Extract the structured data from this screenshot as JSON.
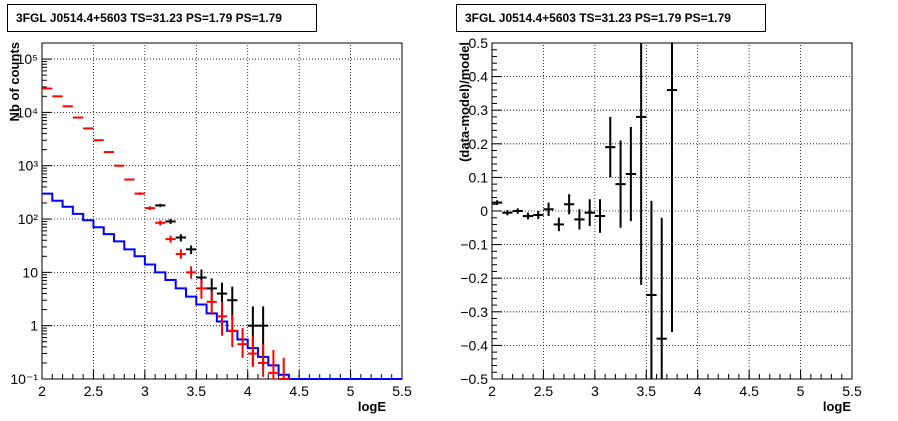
{
  "chart_data": [
    {
      "type": "line",
      "title": "3FGL J0514.4+5603 TS=31.23 PS=1.79 PS=1.79",
      "xlabel": "logE",
      "ylabel": "Nb of counts",
      "xlim": [
        2,
        5.5
      ],
      "ylim": [
        0.1,
        200000
      ],
      "yscale": "log",
      "grid": true,
      "xticks": [
        "2",
        "2.5",
        "3",
        "3.5",
        "4",
        "4.5",
        "5",
        "5.5"
      ],
      "yticks": [
        "10⁻¹",
        "1",
        "10",
        "10²",
        "10³",
        "10⁴",
        "10⁵"
      ],
      "series": [
        {
          "color": "#0000ff",
          "style": "histogram",
          "x": [
            2.0,
            2.1,
            2.2,
            2.3,
            2.4,
            2.5,
            2.6,
            2.7,
            2.8,
            2.9,
            3.0,
            3.1,
            3.2,
            3.3,
            3.4,
            3.5,
            3.6,
            3.7,
            3.8,
            3.9,
            4.0,
            4.1,
            4.2,
            4.3,
            4.4,
            4.5,
            4.6,
            4.7,
            4.8,
            4.9,
            5.0,
            5.1,
            5.2,
            5.3,
            5.4
          ],
          "values": [
            300,
            220,
            170,
            125,
            95,
            70,
            52,
            38,
            27,
            20,
            14,
            10,
            7.2,
            5.0,
            3.5,
            2.5,
            1.7,
            1.2,
            0.8,
            0.55,
            0.38,
            0.26,
            0.18,
            0.12,
            0.1,
            0.1,
            0.1,
            0.1,
            0.1,
            0.1,
            0.1,
            0.1,
            0.1,
            0.1,
            0.1
          ]
        },
        {
          "color": "#ff0000",
          "style": "points",
          "x": [
            2.05,
            2.15,
            2.25,
            2.35,
            2.45,
            2.55,
            2.65,
            2.75,
            2.85,
            2.95,
            3.05,
            3.15,
            3.25,
            3.35,
            3.45,
            3.55,
            3.65,
            3.75,
            3.85,
            3.95,
            4.05,
            4.15,
            4.25,
            4.35
          ],
          "values": [
            28000,
            20000,
            13000,
            8000,
            5000,
            3000,
            1800,
            1000,
            550,
            300,
            160,
            85,
            42,
            22,
            10,
            5,
            2.8,
            1.5,
            0.8,
            0.45,
            0.3,
            0.2,
            0.13,
            0.1
          ],
          "yerr_low": [
            27832,
            19859,
            12886,
            7911,
            4929,
            2945,
            1758,
            968,
            527,
            283,
            148,
            76,
            36,
            18,
            7.6,
            3.2,
            1.6,
            0.65,
            0.4,
            0.25,
            0.17,
            0.11,
            0.07,
            0.05
          ],
          "yerr_high": [
            28168,
            20141,
            13114,
            8089,
            5071,
            3055,
            1842,
            1032,
            573,
            317,
            173,
            94,
            49,
            27,
            13,
            7.2,
            4.4,
            2.8,
            1.6,
            0.9,
            0.65,
            0.45,
            0.35,
            0.25
          ]
        },
        {
          "color": "#000000",
          "style": "points",
          "x": [
            3.15,
            3.25,
            3.35,
            3.45,
            3.55,
            3.65,
            3.75,
            3.85,
            4.05,
            4.15
          ],
          "values": [
            180,
            90,
            45,
            27,
            8,
            5,
            4,
            3,
            1,
            1
          ],
          "yerr_low": [
            167,
            81,
            38,
            22,
            5.2,
            2.8,
            2,
            1.3,
            0.17,
            0.17
          ],
          "yerr_high": [
            193,
            100,
            52,
            32,
            11.3,
            7.7,
            6.4,
            5.4,
            2.3,
            2.3
          ]
        }
      ]
    },
    {
      "type": "scatter",
      "title": "3FGL J0514.4+5603 TS=31.23 PS=1.79 PS=1.79",
      "xlabel": "logE",
      "ylabel": "(data-model)/model",
      "xlim": [
        2,
        5.5
      ],
      "ylim": [
        -0.5,
        0.5
      ],
      "grid": true,
      "xticks": [
        "2",
        "2.5",
        "3",
        "3.5",
        "4",
        "4.5",
        "5",
        "5.5"
      ],
      "yticks": [
        "−0.5",
        "−0.4",
        "−0.3",
        "−0.2",
        "−0.1",
        "0",
        "0.1",
        "0.2",
        "0.3",
        "0.4",
        "0.5"
      ],
      "series": [
        {
          "color": "#000000",
          "x": [
            2.05,
            2.15,
            2.25,
            2.35,
            2.45,
            2.55,
            2.65,
            2.75,
            2.85,
            2.95,
            3.05,
            3.15,
            3.25,
            3.35,
            3.45,
            3.55,
            3.65,
            3.75
          ],
          "values": [
            0.025,
            -0.005,
            0.0,
            -0.015,
            -0.012,
            0.005,
            -0.04,
            0.02,
            -0.025,
            -0.005,
            -0.015,
            0.19,
            0.08,
            0.11,
            0.28,
            -0.25,
            -0.38,
            0.36
          ],
          "yerr": [
            0.007,
            0.008,
            0.008,
            0.01,
            0.012,
            0.02,
            0.02,
            0.03,
            0.03,
            0.04,
            0.05,
            0.09,
            0.13,
            0.14,
            0.5,
            0.28,
            0.36,
            0.72
          ]
        }
      ]
    }
  ]
}
